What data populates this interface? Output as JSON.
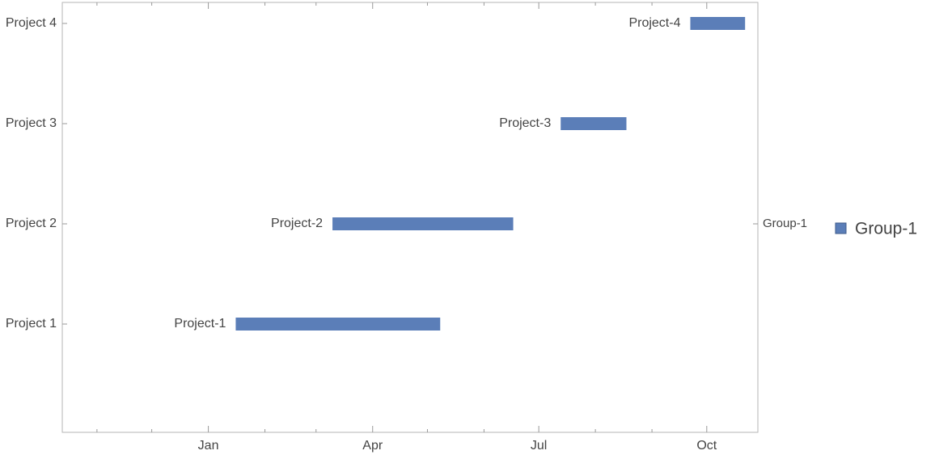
{
  "chart_data": {
    "type": "timeline",
    "categories": [
      "Project 1",
      "Project 2",
      "Project 3",
      "Project 4"
    ],
    "series": [
      {
        "name": "Group-1",
        "color": "#5b7eb8",
        "tasks": [
          {
            "label": "Project-1",
            "start": 15,
            "end": 127
          },
          {
            "label": "Project-2",
            "start": 68,
            "end": 167
          },
          {
            "label": "Project-3",
            "start": 193,
            "end": 229
          },
          {
            "label": "Project-4",
            "start": 264,
            "end": 294
          }
        ]
      }
    ],
    "xlim": [
      -80,
      301
    ],
    "xticks": [
      {
        "value": 0,
        "label": "Jan"
      },
      {
        "value": 90,
        "label": "Apr"
      },
      {
        "value": 181,
        "label": "Jul"
      },
      {
        "value": 273,
        "label": "Oct"
      }
    ],
    "xminorticks": [
      -61,
      -31,
      31,
      59,
      120,
      151,
      212,
      243
    ]
  }
}
